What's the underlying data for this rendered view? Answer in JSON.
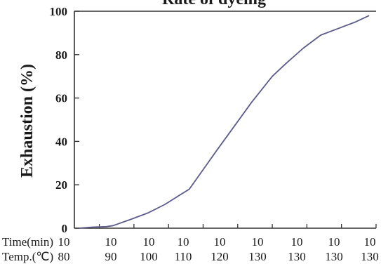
{
  "chart_data": {
    "type": "line",
    "title": "Rate of dyeing",
    "ylabel": "Exhaustion (%)",
    "ylim": [
      0,
      100
    ],
    "yticks": [
      "0",
      "20",
      "40",
      "60",
      "80",
      "100"
    ],
    "x_row_labels": [
      "Time(min)",
      "Temp.(℃)"
    ],
    "x_time": [
      "10",
      "10",
      "10",
      "10",
      "10",
      "10",
      "10",
      "10",
      "10"
    ],
    "x_temp": [
      "80",
      "90",
      "100",
      "110",
      "120",
      "130",
      "130",
      "130",
      "130"
    ],
    "grid": false,
    "series": [
      {
        "x": [
          0,
          0.4,
          0.8,
          1.0,
          1.5,
          2.0,
          2.5,
          2.8,
          3.2,
          3.6,
          4.0,
          4.5,
          5.0,
          5.6,
          6.0,
          6.5,
          7.0,
          7.5,
          8.0,
          8.4
        ],
        "values": [
          0,
          0.5,
          0.7,
          1.2,
          4,
          7,
          11,
          14,
          18,
          27,
          36,
          47,
          58,
          70,
          76,
          83,
          89,
          92,
          95,
          98
        ],
        "color": "#5b5b8c"
      }
    ]
  }
}
